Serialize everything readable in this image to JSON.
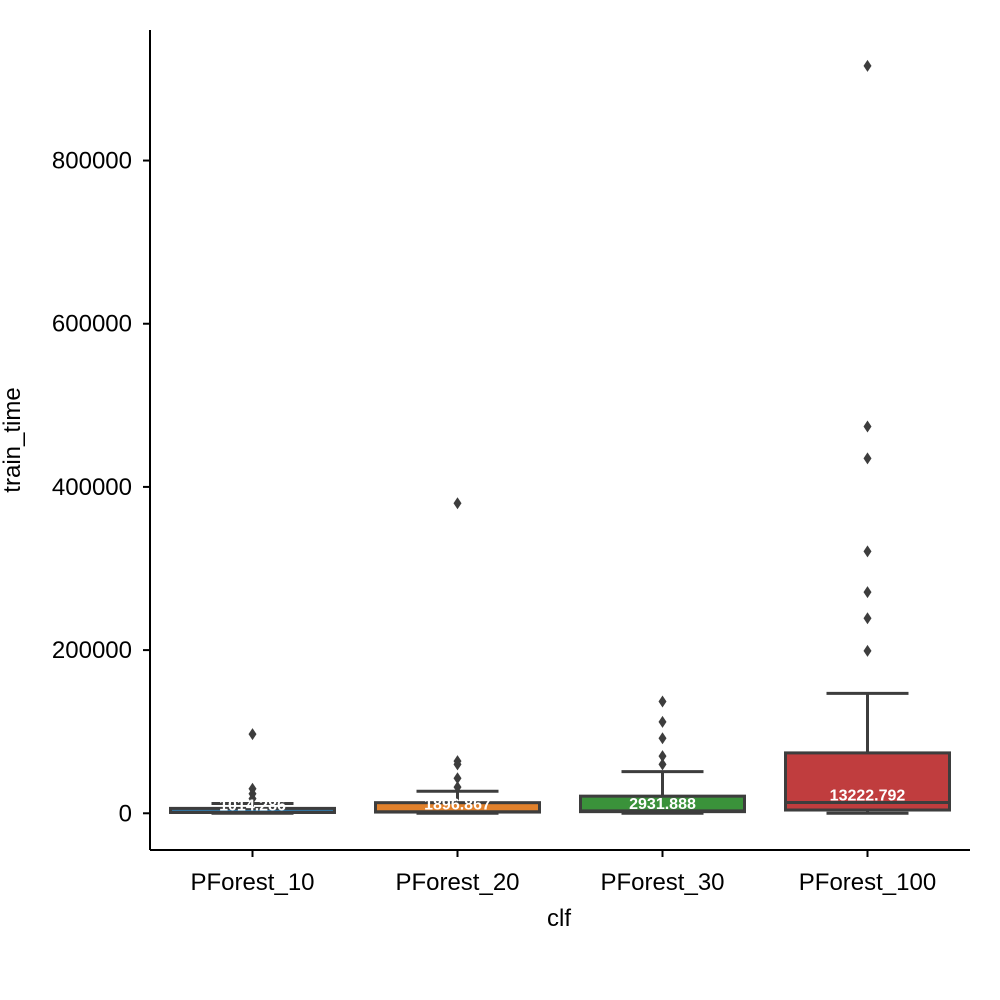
{
  "chart_data": {
    "type": "box",
    "xlabel": "clf",
    "ylabel": "train_time",
    "ylim": [
      -45000,
      960000
    ],
    "yticks": [
      0,
      200000,
      400000,
      600000,
      800000
    ],
    "ytick_labels": [
      "0",
      "200000",
      "400000",
      "600000",
      "800000"
    ],
    "grid": false,
    "line_color": "#3d3d3d",
    "categories": [
      "PForest_10",
      "PForest_20",
      "PForest_30",
      "PForest_100"
    ],
    "boxes": [
      {
        "name": "PForest_10",
        "color": "#3274a1",
        "min": 0,
        "q1": 1000,
        "median": 1014.286,
        "q3": 6000,
        "max": 12000,
        "outliers": [
          97000,
          30000,
          24000,
          18000
        ],
        "median_label": "1014.286"
      },
      {
        "name": "PForest_20",
        "color": "#e1812c",
        "min": 0,
        "q1": 1500,
        "median": 1896.867,
        "q3": 13000,
        "max": 27000,
        "outliers": [
          380000,
          64000,
          60000,
          43000,
          32000
        ],
        "median_label": "1896.867"
      },
      {
        "name": "PForest_30",
        "color": "#3a923a",
        "min": 0,
        "q1": 2000,
        "median": 2931.888,
        "q3": 21000,
        "max": 51000,
        "outliers": [
          137000,
          112000,
          92000,
          70000,
          60000
        ],
        "median_label": "2931.888"
      },
      {
        "name": "PForest_100",
        "color": "#c03d3e",
        "min": 0,
        "q1": 4000,
        "median": 13222.792,
        "q3": 74000,
        "max": 147000,
        "outliers": [
          916000,
          474000,
          435000,
          321000,
          271000,
          239000,
          199000
        ],
        "median_label": "13222.792"
      }
    ]
  }
}
